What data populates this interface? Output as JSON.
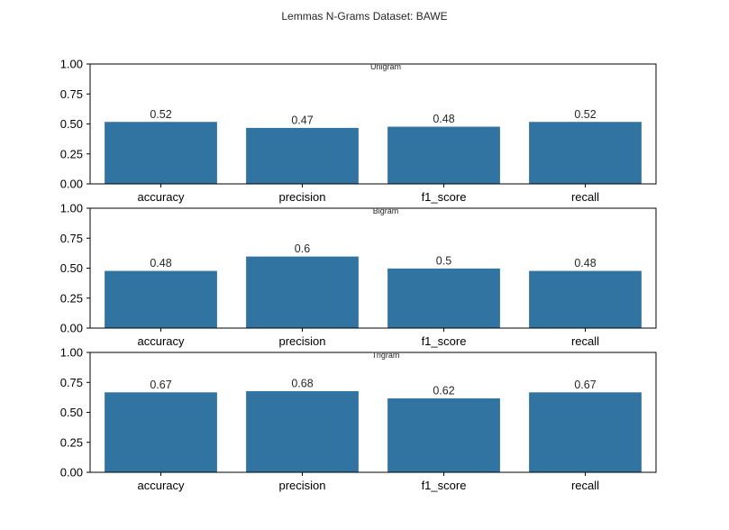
{
  "chart_data": {
    "type": "bar",
    "title": "Lemmas N-Grams Dataset: BAWE",
    "bar_color": "#3274a1",
    "ylim": [
      0,
      1
    ],
    "yticks": [
      "0.00",
      "0.25",
      "0.50",
      "0.75",
      "1.00"
    ],
    "subplots": [
      {
        "title": "Unigram",
        "categories": [
          "accuracy",
          "precision",
          "f1_score",
          "recall"
        ],
        "values": [
          0.52,
          0.47,
          0.48,
          0.52
        ],
        "labels": [
          "0.52",
          "0.47",
          "0.48",
          "0.52"
        ]
      },
      {
        "title": "Bigram",
        "categories": [
          "accuracy",
          "precision",
          "f1_score",
          "recall"
        ],
        "values": [
          0.48,
          0.6,
          0.5,
          0.48
        ],
        "labels": [
          "0.48",
          "0.6",
          "0.5",
          "0.48"
        ]
      },
      {
        "title": "Trigram",
        "categories": [
          "accuracy",
          "precision",
          "f1_score",
          "recall"
        ],
        "values": [
          0.67,
          0.68,
          0.62,
          0.67
        ],
        "labels": [
          "0.67",
          "0.68",
          "0.62",
          "0.67"
        ]
      }
    ]
  }
}
